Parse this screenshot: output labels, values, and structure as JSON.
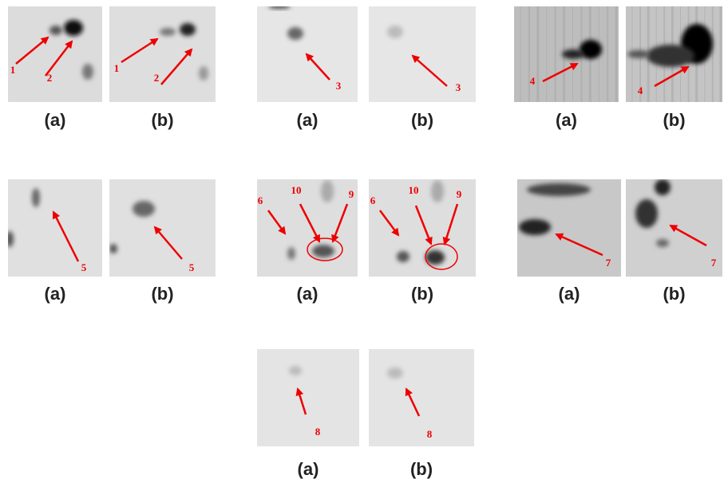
{
  "panels": [
    {
      "images": [
        {
          "caption": "(a)",
          "labels": [
            "1",
            "2"
          ]
        },
        {
          "caption": "(b)",
          "labels": [
            "1",
            "2"
          ]
        }
      ]
    },
    {
      "images": [
        {
          "caption": "(a)",
          "labels": [
            "3"
          ]
        },
        {
          "caption": "(b)",
          "labels": [
            "3"
          ]
        }
      ]
    },
    {
      "images": [
        {
          "caption": "(a)",
          "labels": [
            "4"
          ]
        },
        {
          "caption": "(b)",
          "labels": [
            "4"
          ]
        }
      ]
    },
    {
      "images": [
        {
          "caption": "(a)",
          "labels": [
            "5"
          ]
        },
        {
          "caption": "(b)",
          "labels": [
            "5"
          ]
        }
      ]
    },
    {
      "images": [
        {
          "caption": "(a)",
          "labels": [
            "6",
            "10",
            "9"
          ]
        },
        {
          "caption": "(b)",
          "labels": [
            "6",
            "10",
            "9"
          ]
        }
      ]
    },
    {
      "images": [
        {
          "caption": "(a)",
          "labels": [
            "7"
          ]
        },
        {
          "caption": "(b)",
          "labels": [
            "7"
          ]
        }
      ]
    },
    {
      "images": [
        {
          "caption": "(a)",
          "labels": [
            "8"
          ]
        },
        {
          "caption": "(b)",
          "labels": [
            "8"
          ]
        }
      ]
    }
  ]
}
